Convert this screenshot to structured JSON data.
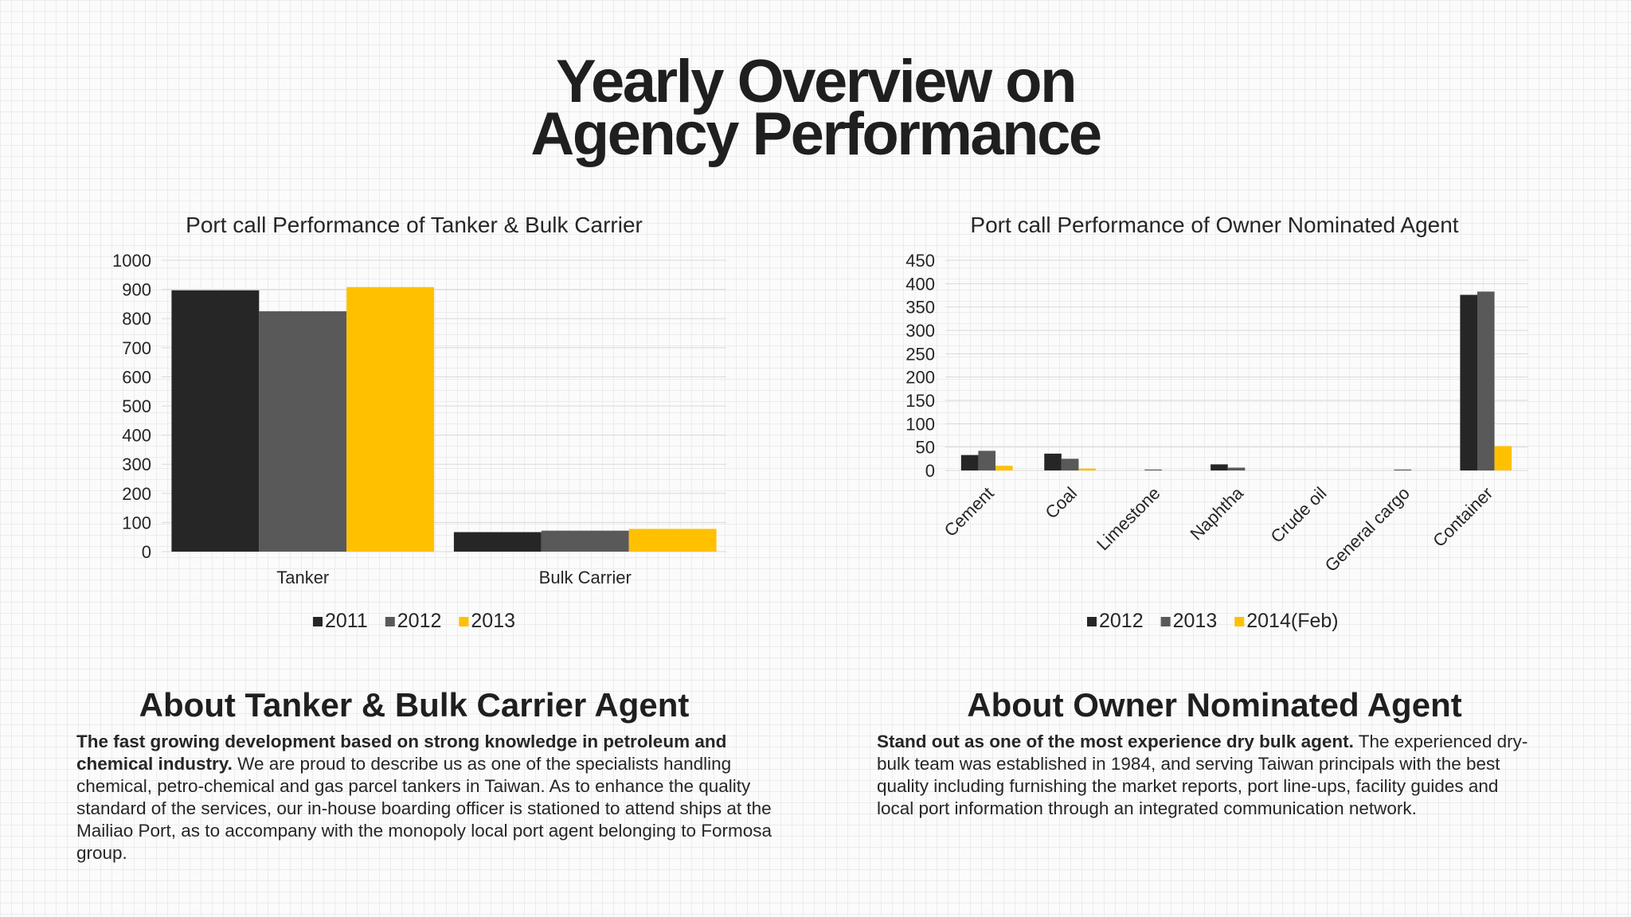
{
  "title": {
    "line1": "Yearly Overview on",
    "line2": "Agency Performance"
  },
  "colors": {
    "s1": "#262626",
    "s2": "#595959",
    "s3": "#ffc000"
  },
  "chart_data": [
    {
      "type": "bar",
      "title": "Port call Performance of Tanker & Bulk Carrier",
      "categories": [
        "Tanker",
        "Bulk Carrier"
      ],
      "series": [
        {
          "name": "2011",
          "values": [
            897,
            67
          ]
        },
        {
          "name": "2012",
          "values": [
            825,
            72
          ]
        },
        {
          "name": "2013",
          "values": [
            908,
            78
          ]
        }
      ],
      "ylim": [
        0,
        1000
      ],
      "yticks": [
        0,
        100,
        200,
        300,
        400,
        500,
        600,
        700,
        800,
        900,
        1000
      ],
      "grid": true,
      "legend": "bottom"
    },
    {
      "type": "bar",
      "title": "Port call Performance of Owner Nominated Agent",
      "categories": [
        "Cement",
        "Coal",
        "Limestone",
        "Naphtha",
        "Crude oil",
        "General  cargo",
        "Container"
      ],
      "series": [
        {
          "name": "2012",
          "values": [
            33,
            36,
            0,
            13,
            0,
            0,
            376
          ]
        },
        {
          "name": "2013",
          "values": [
            42,
            25,
            2,
            6,
            0,
            2,
            383
          ]
        },
        {
          "name": "2014(Feb)",
          "values": [
            10,
            4,
            0,
            0,
            0,
            0,
            52
          ]
        }
      ],
      "ylim": [
        0,
        450
      ],
      "yticks": [
        0,
        50,
        100,
        150,
        200,
        250,
        300,
        350,
        400,
        450
      ],
      "grid": true,
      "legend": "bottom"
    }
  ],
  "sections": {
    "left": {
      "heading": "About Tanker & Bulk Carrier Agent",
      "bold": "The fast growing development based on strong knowledge in petroleum and chemical industry.",
      "text": " We are proud to describe us as one of the specialists handling chemical, petro-chemical and gas parcel tankers in Taiwan. As to enhance the quality standard of the services, our in-house boarding officer is stationed to attend ships at the Mailiao Port, as to accompany with the monopoly local port agent belonging to Formosa group."
    },
    "right": {
      "heading": "About Owner Nominated Agent",
      "bold": "Stand out as one of the most experience dry bulk agent.",
      "text": " The experienced dry-bulk team was established in 1984, and serving Taiwan principals with the best quality including furnishing the market reports, port line-ups, facility guides and local port information through an integrated communication network."
    }
  }
}
